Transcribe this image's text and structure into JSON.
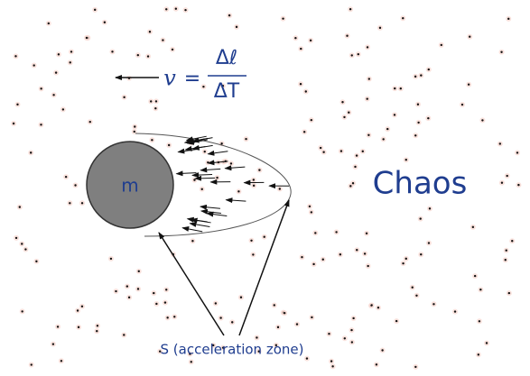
{
  "equation": {
    "lhs": "v",
    "equals": "=",
    "numerator": "Δℓ",
    "denominator": "ΔT"
  },
  "mass_label": "m",
  "region_label": "Chaos",
  "zone_label": "S (acceleration zone)"
}
